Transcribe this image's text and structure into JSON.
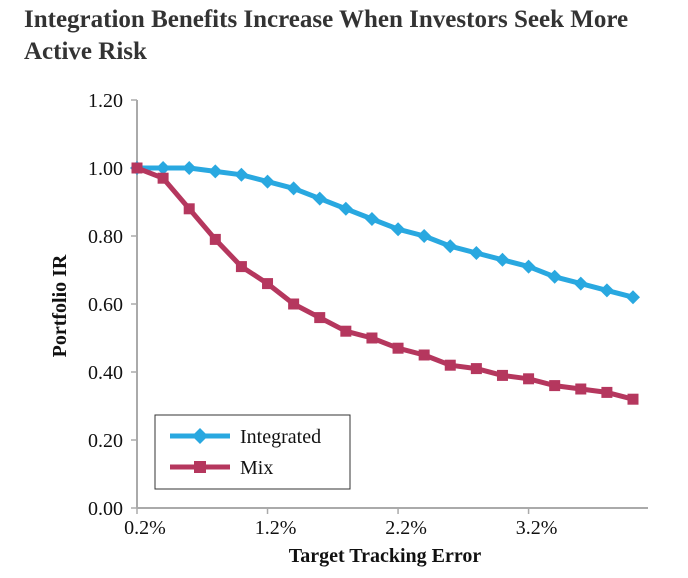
{
  "chart_data": {
    "type": "line",
    "title": "Integration Benefits Increase When Investors Seek More Active Risk",
    "xlabel": "Target Tracking Error",
    "ylabel": "Portfolio IR",
    "ylim": [
      0,
      1.2
    ],
    "y_ticks": [
      "0.00",
      "0.20",
      "0.40",
      "0.60",
      "0.80",
      "1.00",
      "1.20"
    ],
    "x_ticks": [
      "0.2%",
      "1.2%",
      "2.2%",
      "3.2%"
    ],
    "x": [
      0.2,
      0.4,
      0.6,
      0.8,
      1.0,
      1.2,
      1.4,
      1.6,
      1.8,
      2.0,
      2.2,
      2.4,
      2.6,
      2.8,
      3.0,
      3.2,
      3.4,
      3.6,
      3.8,
      4.0
    ],
    "grid": false,
    "legend_position": "bottom-left",
    "series": [
      {
        "name": "Integrated",
        "color": "#29A8E0",
        "marker": "diamond",
        "values": [
          1.0,
          1.0,
          1.0,
          0.99,
          0.98,
          0.96,
          0.94,
          0.91,
          0.88,
          0.85,
          0.82,
          0.8,
          0.77,
          0.75,
          0.73,
          0.71,
          0.68,
          0.66,
          0.64,
          0.62
        ]
      },
      {
        "name": "Mix",
        "color": "#B5375E",
        "marker": "square",
        "values": [
          1.0,
          0.97,
          0.88,
          0.79,
          0.71,
          0.66,
          0.6,
          0.56,
          0.52,
          0.5,
          0.47,
          0.45,
          0.42,
          0.41,
          0.39,
          0.38,
          0.36,
          0.35,
          0.34,
          0.32
        ]
      }
    ]
  }
}
